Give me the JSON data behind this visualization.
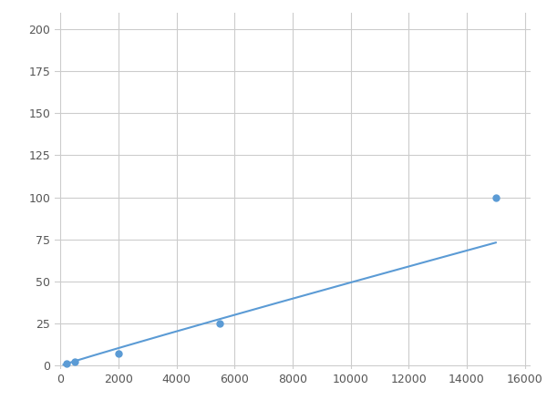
{
  "x": [
    200,
    500,
    2000,
    5500,
    15000
  ],
  "y": [
    1.5,
    2.5,
    7.0,
    25.0,
    100.0
  ],
  "line_color": "#5b9bd5",
  "marker_color": "#5b9bd5",
  "marker_size": 5,
  "linewidth": 1.5,
  "xlim": [
    -200,
    16200
  ],
  "ylim": [
    -2,
    210
  ],
  "xticks": [
    0,
    2000,
    4000,
    6000,
    8000,
    10000,
    12000,
    14000,
    16000
  ],
  "yticks": [
    0,
    25,
    50,
    75,
    100,
    125,
    150,
    175,
    200
  ],
  "grid_color": "#cccccc",
  "bg_color": "#ffffff",
  "fig_bg_color": "#ffffff"
}
